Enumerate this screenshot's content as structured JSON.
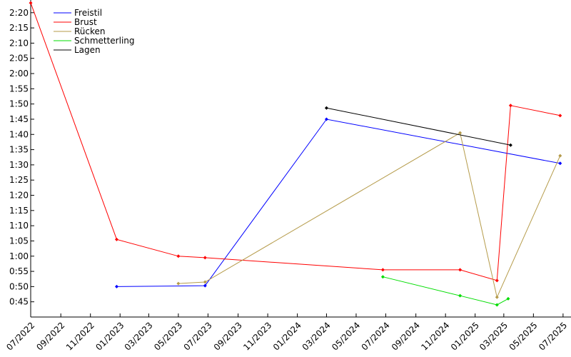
{
  "chart_data": {
    "type": "line",
    "title": "",
    "xlabel": "",
    "ylabel": "",
    "grid": false,
    "legend_position": "top-left",
    "x_type": "date",
    "xlim": [
      "2022-07-01",
      "2025-07-10"
    ],
    "ylim": [
      "0:40",
      "2:23"
    ],
    "x_ticks": [
      "07/2022",
      "09/2022",
      "11/2022",
      "01/2023",
      "03/2023",
      "05/2023",
      "07/2023",
      "09/2023",
      "11/2023",
      "01/2024",
      "03/2024",
      "05/2024",
      "07/2024",
      "09/2024",
      "11/2024",
      "01/2025",
      "03/2025",
      "05/2025",
      "07/2025"
    ],
    "y_ticks": [
      "0:45",
      "0:50",
      "0:55",
      "1:00",
      "1:05",
      "1:10",
      "1:15",
      "1:20",
      "1:25",
      "1:30",
      "1:35",
      "1:40",
      "1:45",
      "1:50",
      "1:55",
      "2:00",
      "2:05",
      "2:10",
      "2:15",
      "2:20"
    ],
    "series": [
      {
        "name": "Freistil",
        "color": "#0000ff",
        "points": [
          {
            "x": "2022-12-25",
            "y": "0:50.0"
          },
          {
            "x": "2023-06-25",
            "y": "0:50.3"
          },
          {
            "x": "2024-03-01",
            "y": "1:45.0"
          },
          {
            "x": "2025-06-25",
            "y": "1:30.5"
          }
        ]
      },
      {
        "name": "Brust",
        "color": "#ff0000",
        "points": [
          {
            "x": "2022-07-01",
            "y": "2:23.2"
          },
          {
            "x": "2022-12-25",
            "y": "1:05.5"
          },
          {
            "x": "2023-05-01",
            "y": "1:00.0"
          },
          {
            "x": "2023-06-25",
            "y": "0:59.5"
          },
          {
            "x": "2024-06-25",
            "y": "0:55.5"
          },
          {
            "x": "2024-12-01",
            "y": "0:55.5"
          },
          {
            "x": "2025-02-15",
            "y": "0:52.0"
          },
          {
            "x": "2025-03-15",
            "y": "1:49.5"
          },
          {
            "x": "2025-06-25",
            "y": "1:46.2"
          }
        ]
      },
      {
        "name": "Rücken",
        "color": "#b59b4a",
        "points": [
          {
            "x": "2023-05-01",
            "y": "0:51.0"
          },
          {
            "x": "2023-06-25",
            "y": "0:51.5"
          },
          {
            "x": "2024-12-01",
            "y": "1:40.5"
          },
          {
            "x": "2025-02-15",
            "y": "0:46.5"
          },
          {
            "x": "2025-06-25",
            "y": "1:33.0"
          }
        ]
      },
      {
        "name": "Schmetterling",
        "color": "#00dd00",
        "points": [
          {
            "x": "2024-06-25",
            "y": "0:53.2"
          },
          {
            "x": "2024-12-01",
            "y": "0:47.0"
          },
          {
            "x": "2025-02-15",
            "y": "0:44.0"
          },
          {
            "x": "2025-03-10",
            "y": "0:46.0"
          }
        ]
      },
      {
        "name": "Lagen",
        "color": "#000000",
        "points": [
          {
            "x": "2024-03-01",
            "y": "1:48.7"
          },
          {
            "x": "2025-03-15",
            "y": "1:36.5"
          }
        ]
      }
    ]
  }
}
